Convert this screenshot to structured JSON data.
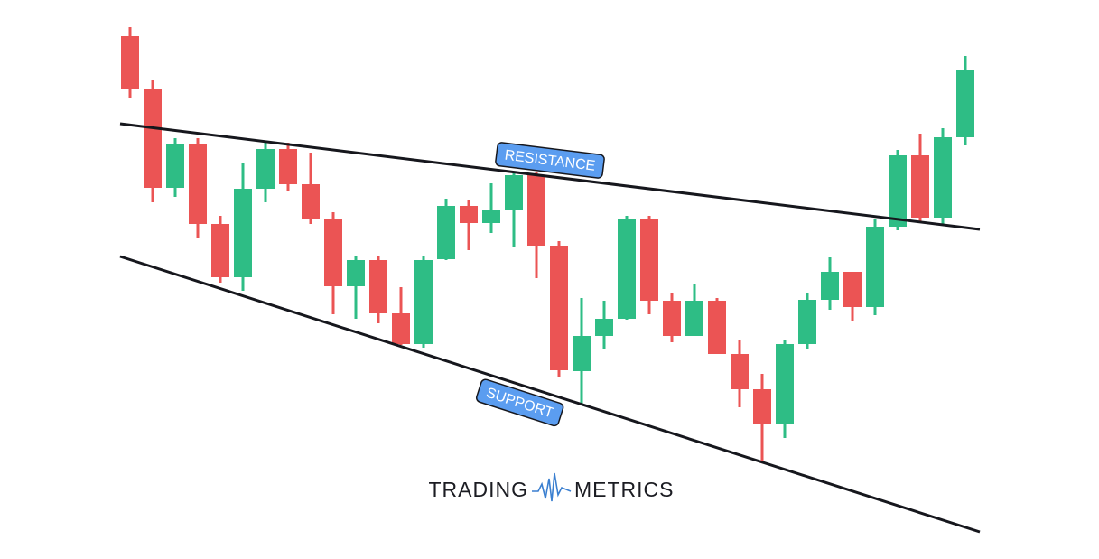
{
  "chart_data": {
    "type": "candlestick",
    "up_color": "#2ebd85",
    "down_color": "#eb5454",
    "xlim": [
      -0.44,
      37.64
    ],
    "ylim": [
      0,
      619
    ],
    "x": [
      0,
      1,
      2,
      3,
      4,
      5,
      6,
      7,
      8,
      9,
      10,
      11,
      12,
      13,
      14,
      15,
      16,
      17,
      18,
      19,
      20,
      21,
      22,
      23,
      24,
      25,
      26,
      27,
      28,
      29,
      30,
      31,
      32,
      33,
      34,
      35,
      36,
      37
    ],
    "open": [
      579,
      520,
      411,
      460,
      371,
      312,
      410,
      454,
      415,
      376,
      302,
      331,
      272,
      238,
      332,
      391,
      372,
      386,
      425,
      347,
      208,
      247,
      266,
      376,
      286,
      247,
      286,
      227,
      188,
      149,
      238,
      287,
      318,
      279,
      368,
      447,
      378,
      467
    ],
    "high": [
      589,
      530,
      466,
      466,
      380,
      439,
      463,
      461,
      450,
      384,
      336,
      336,
      301,
      336,
      399,
      397,
      416,
      429,
      429,
      352,
      289,
      286,
      380,
      380,
      295,
      305,
      289,
      243,
      205,
      243,
      295,
      334,
      318,
      377,
      453,
      471,
      477,
      557
    ],
    "low": [
      510,
      395,
      401,
      356,
      306,
      297,
      395,
      407,
      371,
      271,
      266,
      261,
      237,
      234,
      331,
      342,
      361,
      346,
      311,
      201,
      172,
      232,
      265,
      271,
      240,
      247,
      227,
      168,
      108,
      134,
      232,
      276,
      264,
      270,
      364,
      373,
      371,
      458
    ],
    "close": [
      520,
      411,
      460,
      371,
      312,
      410,
      454,
      415,
      376,
      302,
      331,
      272,
      238,
      331,
      391,
      372,
      386,
      425,
      347,
      209,
      247,
      266,
      376,
      286,
      247,
      286,
      227,
      188,
      149,
      238,
      287,
      318,
      279,
      368,
      447,
      378,
      467,
      542
    ],
    "lines": [
      {
        "label": "RESISTANCE",
        "x": [
          -0.44,
          37.64
        ],
        "values": [
          482,
          365
        ]
      },
      {
        "label": "SUPPORT",
        "x": [
          -0.44,
          37.64
        ],
        "values": [
          335,
          30
        ]
      }
    ],
    "brand": {
      "left": "TRADING",
      "right": "METRICS"
    }
  }
}
